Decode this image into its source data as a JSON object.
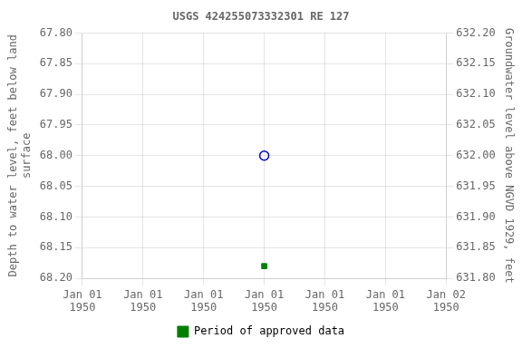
{
  "chart_data": {
    "type": "scatter",
    "title": "USGS 424255073332301 RE 127",
    "ylabel": "Depth to water level, feet below land\nsurface",
    "y2label": "Groundwater level above NGVD 1929, feet",
    "x": [
      3
    ],
    "series": [
      {
        "color": "#0000cc",
        "marker": "open_circle",
        "values": [
          68.0
        ]
      },
      {
        "name": "Period of approved data",
        "color": "#008000",
        "marker": "square",
        "values": [
          68.18
        ]
      }
    ],
    "xlim": [
      0,
      6
    ],
    "xticks": [
      {
        "value": 0,
        "label": "Jan 01\n1950"
      },
      {
        "value": 1,
        "label": "Jan 01\n1950"
      },
      {
        "value": 2,
        "label": "Jan 01\n1950"
      },
      {
        "value": 3,
        "label": "Jan 01\n1950"
      },
      {
        "value": 4,
        "label": "Jan 01\n1950"
      },
      {
        "value": 5,
        "label": "Jan 01\n1950"
      },
      {
        "value": 6,
        "label": "Jan 02\n1950"
      }
    ],
    "ylim": [
      68.2,
      67.8
    ],
    "yticks": [
      {
        "value": 67.8,
        "label": "67.80"
      },
      {
        "value": 67.85,
        "label": "67.85"
      },
      {
        "value": 67.9,
        "label": "67.90"
      },
      {
        "value": 67.95,
        "label": "67.95"
      },
      {
        "value": 68.0,
        "label": "68.00"
      },
      {
        "value": 68.05,
        "label": "68.05"
      },
      {
        "value": 68.1,
        "label": "68.10"
      },
      {
        "value": 68.15,
        "label": "68.15"
      },
      {
        "value": 68.2,
        "label": "68.20"
      }
    ],
    "y2lim": [
      631.8,
      632.2
    ],
    "y2ticks": [
      {
        "value": 631.8,
        "label": "631.80"
      },
      {
        "value": 631.85,
        "label": "631.85"
      },
      {
        "value": 631.9,
        "label": "631.90"
      },
      {
        "value": 631.95,
        "label": "631.95"
      },
      {
        "value": 632.0,
        "label": "632.00"
      },
      {
        "value": 632.05,
        "label": "632.05"
      },
      {
        "value": 632.1,
        "label": "632.10"
      },
      {
        "value": 632.15,
        "label": "632.15"
      },
      {
        "value": 632.2,
        "label": "632.20"
      }
    ],
    "grid": true,
    "legend": "bottom"
  }
}
